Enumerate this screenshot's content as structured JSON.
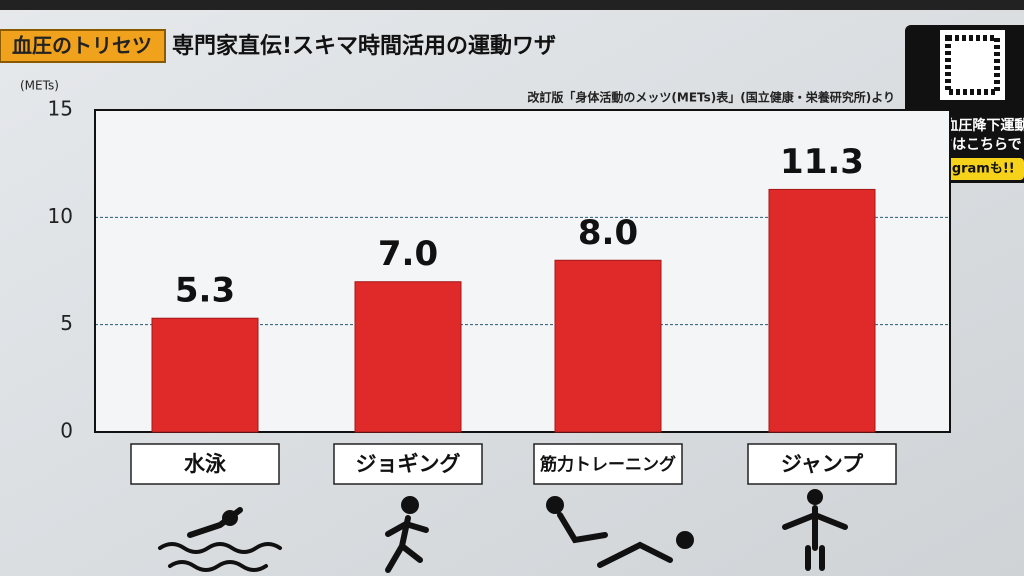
{
  "header": {
    "tag": "血圧のトリセツ",
    "title": "専門家直伝!スキマ時間活用の運動ワザ"
  },
  "overlay": {
    "line1": "時短!血圧降下運動",
    "line2": "やり方はこちらで",
    "line3": "Instagramも!!"
  },
  "chart_data": {
    "type": "bar",
    "y_label": "(METs)",
    "source": "改訂版「身体活動のメッツ(METs)表」(国立健康・栄養研究所)より",
    "categories": [
      "水泳",
      "ジョギング",
      "筋力トレーニング",
      "ジャンプ"
    ],
    "values": [
      5.3,
      7.0,
      8.0,
      11.3
    ],
    "value_labels": [
      "5.3",
      "7.0",
      "8.0",
      "11.3"
    ],
    "color": "#e02a2a",
    "ylim": [
      0,
      15
    ],
    "yticks": [
      0,
      5,
      10,
      15
    ],
    "grid": true
  }
}
